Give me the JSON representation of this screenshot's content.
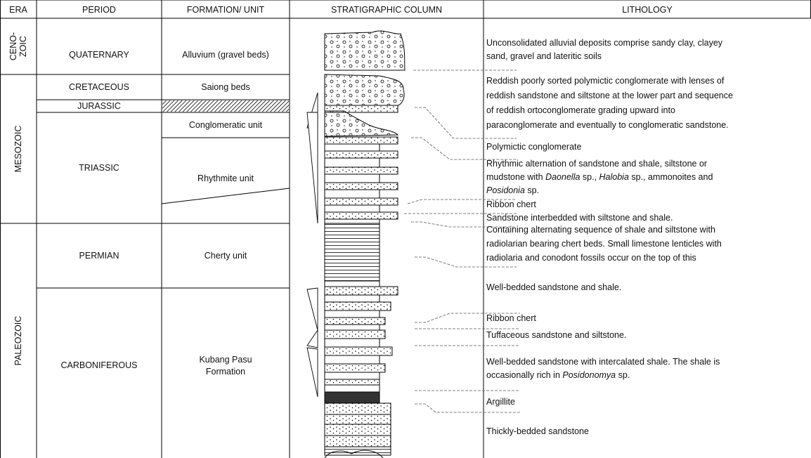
{
  "header": {
    "columns": [
      "ERA",
      "PERIOD",
      "FORMATION/ UNIT",
      "STRATIGRAPHIC COLUMN",
      "LITHOLOGY"
    ]
  },
  "eras": [
    [
      "CENO-",
      "ZOIC"
    ],
    [
      "MESOZOIC"
    ],
    [
      "PALEOZOIC"
    ]
  ],
  "periods": [
    "QUATERNARY",
    "CRETACEOUS",
    "JURASSIC",
    "TRIASSIC",
    "PERMIAN",
    "CARBONIFEROUS"
  ],
  "formations": [
    [
      "Alluvium (gravel beds)"
    ],
    [
      "Saiong beds"
    ],
    [
      "Conglomeratic unit"
    ],
    [
      "Rhythmite unit"
    ],
    [
      "Cherty unit"
    ],
    [
      "Kubang Pasu",
      "Formation"
    ]
  ],
  "lithology": [
    [
      [
        "Unconsolidated alluvial deposits comprise sandy clay, clayey"
      ],
      [
        "sand, gravel and lateritic soils"
      ]
    ],
    [
      [
        "Reddish poorly sorted polymictic conglomerate with lenses of"
      ],
      [
        "reddish sandstone and siltstone at the lower part and sequence"
      ],
      [
        "of reddish ortoconglomerate grading upward into"
      ],
      [
        "paraconglomerate and eventually to conglomeratic sandstone."
      ]
    ],
    [
      [
        "Polymictic conglomerate"
      ]
    ],
    [
      [
        "Rhythmic alternation of sandstone and shale, siltstone or"
      ],
      [
        "mudstone with ",
        {
          "text": "Daonella",
          "italic": true
        },
        " sp., ",
        {
          "text": "Halobia",
          "italic": true
        },
        " sp., ammonoites and"
      ],
      [
        {
          "text": "Posidonia",
          "italic": true
        },
        " sp."
      ]
    ],
    [
      [
        "Ribbon chert"
      ]
    ],
    [
      [
        "Sandstone interbedded with siltstone and shale."
      ]
    ],
    [
      [
        "Containing alternating sequence of shale and siltstone with"
      ],
      [
        "radiolarian bearing chert beds. Small limestone lenticles with"
      ],
      [
        "radiolaria and conodont fossils occur on the top of this"
      ]
    ],
    [
      [
        "Well-bedded sandstone and shale."
      ]
    ],
    [
      [
        "Ribbon chert"
      ]
    ],
    [
      [
        "Tuffaceous sandstone and siltstone."
      ]
    ],
    [
      [
        "Well-bedded sandstone with intercalated shale. The shale is"
      ],
      [
        "occasionally rich in ",
        {
          "text": "Posidonomya",
          "italic": true
        },
        " sp."
      ]
    ],
    [
      [
        "Argillite"
      ]
    ],
    [
      [
        "Thickly-bedded sandstone"
      ]
    ]
  ]
}
